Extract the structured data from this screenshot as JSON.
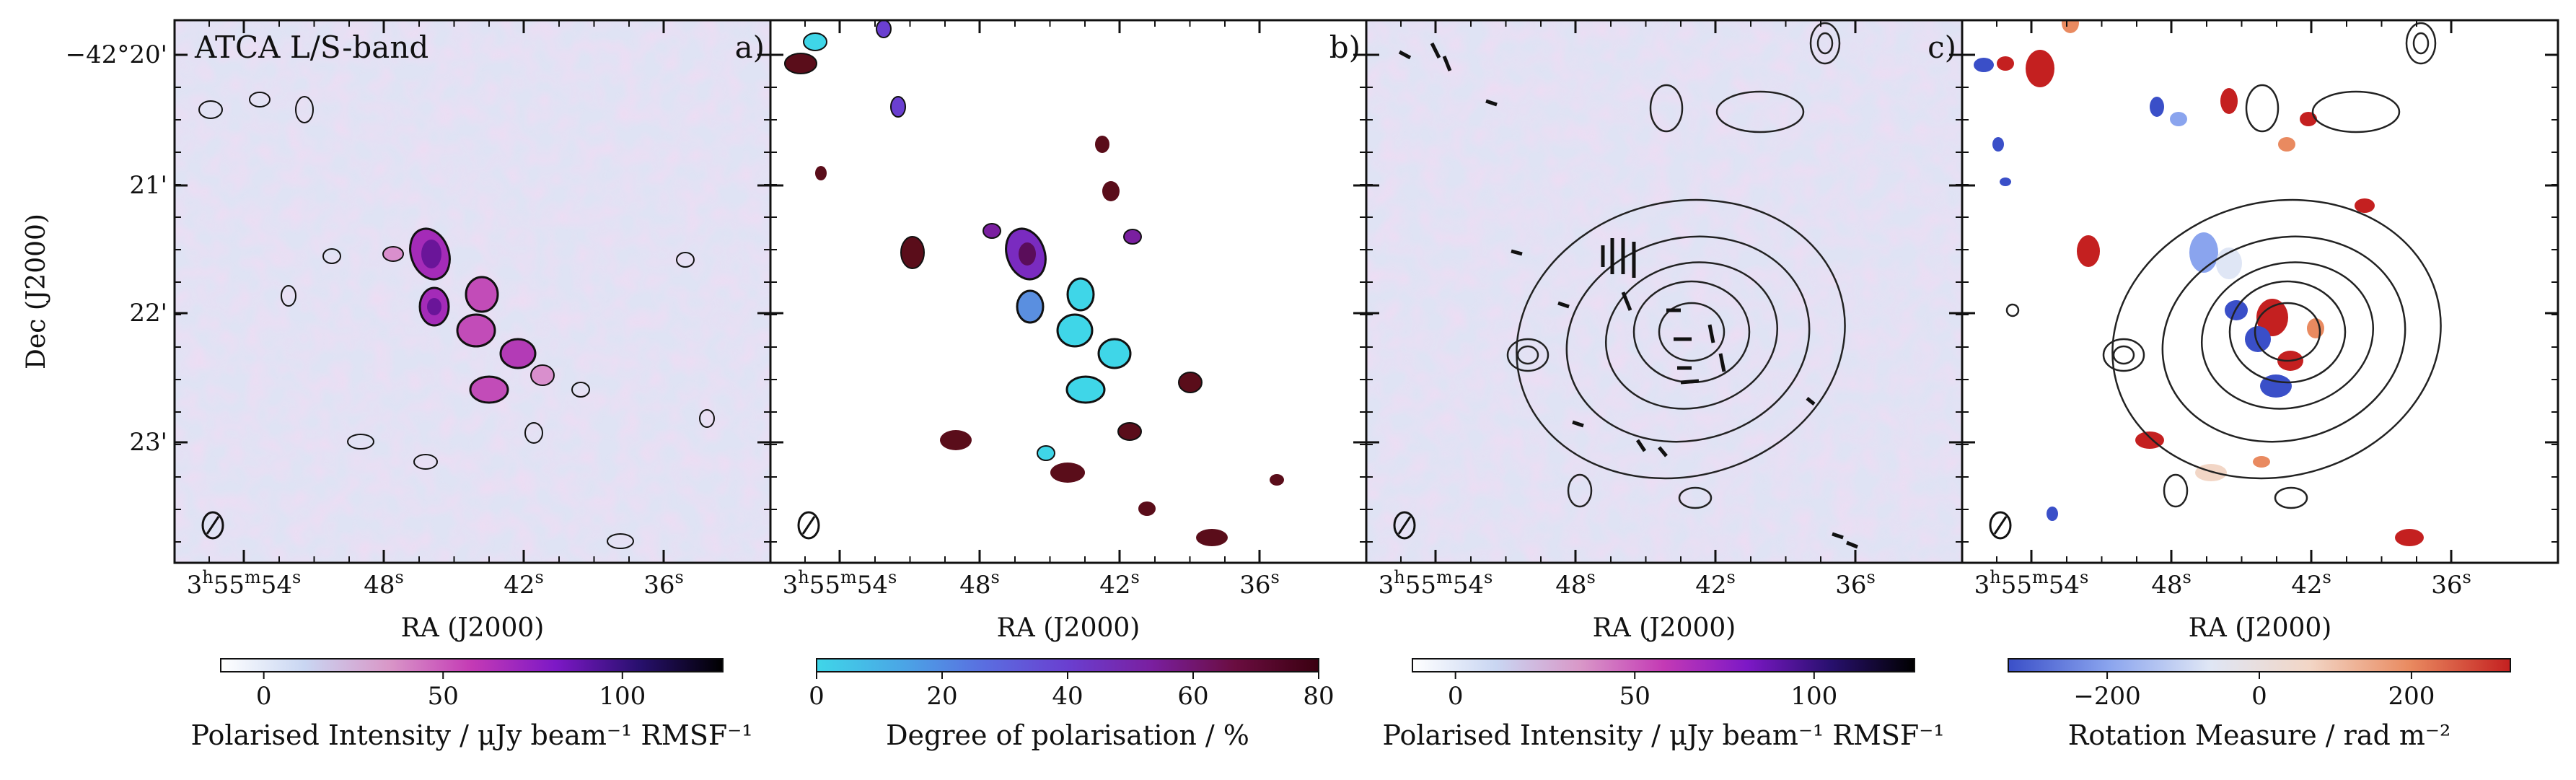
{
  "figure": {
    "title": "ATCA L/S-band",
    "y_axis_label": "Dec (J2000)",
    "x_axis_label": "RA (J2000)",
    "dec_ticks": [
      {
        "main": "−42°20'"
      },
      {
        "main": "21'"
      },
      {
        "main": "22'"
      },
      {
        "main": "23'"
      }
    ],
    "ra_ticks": [
      {
        "h": "3",
        "hs": "h",
        "m": "55",
        "ms": "m",
        "s": "54",
        "ss": "s"
      },
      {
        "s": "48",
        "ss": "s"
      },
      {
        "s": "42",
        "ss": "s"
      },
      {
        "s": "36",
        "ss": "s"
      }
    ],
    "beam_symbol": "beam-ellipse"
  },
  "panels": [
    {
      "id": "a",
      "label": "a)",
      "colorbar": {
        "label": "Polarised Intensity / μJy beam⁻¹ RMSF⁻¹",
        "ticks": [
          "0",
          "50",
          "100"
        ],
        "tick_values": [
          0,
          50,
          100
        ],
        "range": [
          -12,
          128
        ],
        "colormap": [
          "#ffffff",
          "#c9d6f2",
          "#d998c8",
          "#c43ab5",
          "#7d18c6",
          "#28106e",
          "#000000"
        ]
      }
    },
    {
      "id": "b",
      "label": "b)",
      "colorbar": {
        "label": "Degree of polarisation / %",
        "ticks": [
          "0",
          "20",
          "40",
          "60",
          "80"
        ],
        "tick_values": [
          0,
          20,
          40,
          60,
          80
        ],
        "range": [
          0,
          80
        ],
        "colormap": [
          "#3fd6e8",
          "#4aa7e6",
          "#5a6ee0",
          "#6a3fd0",
          "#7a1fa0",
          "#6a0d40",
          "#3a0010"
        ]
      }
    },
    {
      "id": "c",
      "label": "c)",
      "colorbar": {
        "label": "Polarised Intensity / μJy beam⁻¹ RMSF⁻¹",
        "ticks": [
          "0",
          "50",
          "100"
        ],
        "tick_values": [
          0,
          50,
          100
        ],
        "range": [
          -12,
          128
        ],
        "colormap": [
          "#ffffff",
          "#c9d6f2",
          "#d998c8",
          "#c43ab5",
          "#7d18c6",
          "#28106e",
          "#000000"
        ]
      }
    },
    {
      "id": "d",
      "label": "",
      "colorbar": {
        "label": "Rotation Measure / rad m⁻²",
        "ticks": [
          "−200",
          "0",
          "200"
        ],
        "tick_values": [
          -200,
          0,
          200
        ],
        "range": [
          -330,
          330
        ],
        "colormap": [
          "#3a4fc8",
          "#8aa4ee",
          "#dfe6f5",
          "#f2d6c6",
          "#e98a60",
          "#c42020"
        ]
      }
    }
  ]
}
